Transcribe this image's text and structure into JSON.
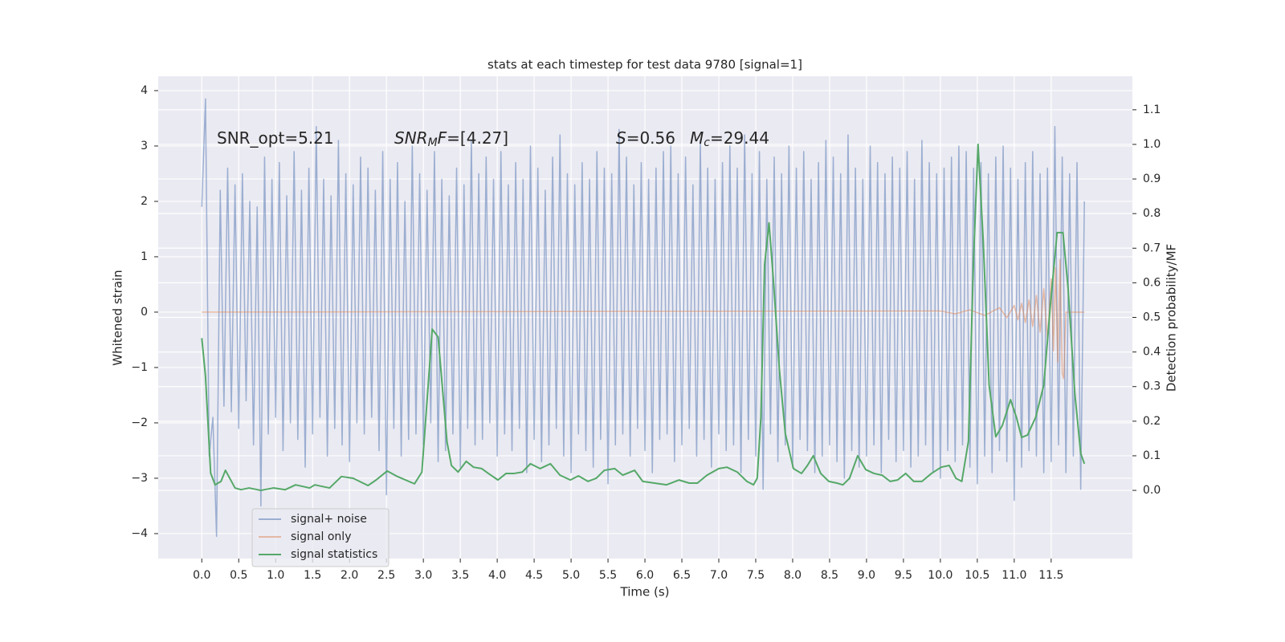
{
  "chart_data": {
    "type": "line",
    "title": "stats at each timestep for test data 9780 [signal=1]",
    "xlabel": "Time (s)",
    "ylabel": "Whitened strain",
    "y2label": "Detection probability/MF",
    "background": "#eaeaf2",
    "grid": true,
    "legend": "lower left",
    "xlim": [
      -0.59,
      12.6
    ],
    "ylim": [
      -4.45,
      4.26
    ],
    "y2lim": [
      -0.197,
      1.197
    ],
    "xticks": [
      {
        "value": 0,
        "label": "0.0"
      },
      0.5,
      {
        "value": 1,
        "label": "1.0"
      },
      1.5,
      {
        "value": 2,
        "label": "2.0"
      },
      2.5,
      {
        "value": 3,
        "label": "3.0"
      },
      3.5,
      {
        "value": 4,
        "label": "4.0"
      },
      4.5,
      {
        "value": 5,
        "label": "5.0"
      },
      5.5,
      {
        "value": 6,
        "label": "6.0"
      },
      6.5,
      {
        "value": 7,
        "label": "7.0"
      },
      7.5,
      {
        "value": 8,
        "label": "8.0"
      },
      8.5,
      {
        "value": 9,
        "label": "9.0"
      },
      9.5,
      {
        "value": 10,
        "label": "10.0"
      },
      10.5,
      {
        "value": 11,
        "label": "11.0"
      },
      11.5
    ],
    "yticks": [
      {
        "value": -4,
        "label": "−4"
      },
      {
        "value": -3,
        "label": "−3"
      },
      {
        "value": -2,
        "label": "−2"
      },
      {
        "value": -1,
        "label": "−1"
      },
      0,
      1,
      2,
      3,
      4
    ],
    "y2ticks": [
      {
        "value": 0,
        "label": "0.0"
      },
      0.1,
      0.2,
      0.3,
      0.4,
      0.5,
      0.6,
      0.7,
      0.8,
      0.9,
      {
        "value": 1,
        "label": "1.0"
      },
      1.1
    ],
    "annotations": [
      [
        {
          "text": "SNR_opt=5.21"
        }
      ],
      [
        {
          "text": "SNR",
          "italic": true
        },
        {
          "text": "M",
          "italic": true,
          "sub": true
        },
        {
          "text": "F",
          "italic": true
        },
        {
          "text": "=[4.27]"
        }
      ],
      [
        {
          "text": "S",
          "italic": true
        },
        {
          "text": "=0.56"
        }
      ],
      [
        {
          "text": "M",
          "italic": true
        },
        {
          "text": "c",
          "italic": true,
          "sub": true
        },
        {
          "text": "=29.44"
        }
      ]
    ],
    "series": [
      {
        "name": "signal+ noise",
        "color": "#4c72b0",
        "opacity": 0.5,
        "x": [
          0,
          0.05,
          0.1,
          0.15,
          0.2,
          0.25,
          0.3,
          0.35,
          0.4,
          0.45,
          0.5,
          0.55,
          0.6,
          0.65,
          0.7,
          0.75,
          0.8,
          0.85,
          0.9,
          0.95,
          1,
          1.05,
          1.1,
          1.15,
          1.2,
          1.25,
          1.3,
          1.35,
          1.4,
          1.45,
          1.5,
          1.55,
          1.6,
          1.65,
          1.7,
          1.75,
          1.8,
          1.85,
          1.9,
          1.95,
          2,
          2.05,
          2.1,
          2.15,
          2.2,
          2.25,
          2.3,
          2.35,
          2.4,
          2.45,
          2.5,
          2.55,
          2.6,
          2.65,
          2.7,
          2.75,
          2.8,
          2.85,
          2.9,
          2.95,
          3,
          3.05,
          3.1,
          3.15,
          3.2,
          3.25,
          3.3,
          3.35,
          3.4,
          3.45,
          3.5,
          3.55,
          3.6,
          3.65,
          3.7,
          3.75,
          3.8,
          3.85,
          3.9,
          3.95,
          4,
          4.05,
          4.1,
          4.15,
          4.2,
          4.25,
          4.3,
          4.35,
          4.4,
          4.45,
          4.5,
          4.55,
          4.6,
          4.65,
          4.7,
          4.75,
          4.8,
          4.85,
          4.9,
          4.95,
          5,
          5.05,
          5.1,
          5.15,
          5.2,
          5.25,
          5.3,
          5.35,
          5.4,
          5.45,
          5.5,
          5.55,
          5.6,
          5.65,
          5.7,
          5.75,
          5.8,
          5.85,
          5.9,
          5.95,
          6,
          6.05,
          6.1,
          6.15,
          6.2,
          6.25,
          6.3,
          6.35,
          6.4,
          6.45,
          6.5,
          6.55,
          6.6,
          6.65,
          6.7,
          6.75,
          6.8,
          6.85,
          6.9,
          6.95,
          7,
          7.05,
          7.1,
          7.15,
          7.2,
          7.25,
          7.3,
          7.35,
          7.4,
          7.45,
          7.5,
          7.55,
          7.6,
          7.65,
          7.7,
          7.75,
          7.8,
          7.85,
          7.9,
          7.95,
          8,
          8.05,
          8.1,
          8.15,
          8.2,
          8.25,
          8.3,
          8.35,
          8.4,
          8.45,
          8.5,
          8.55,
          8.6,
          8.65,
          8.7,
          8.75,
          8.8,
          8.85,
          8.9,
          8.95,
          9,
          9.05,
          9.1,
          9.15,
          9.2,
          9.25,
          9.3,
          9.35,
          9.4,
          9.45,
          9.5,
          9.55,
          9.6,
          9.65,
          9.7,
          9.75,
          9.8,
          9.85,
          9.9,
          9.95,
          10,
          10.05,
          10.1,
          10.15,
          10.2,
          10.25,
          10.3,
          10.35,
          10.4,
          10.45,
          10.5,
          10.55,
          10.6,
          10.65,
          10.7,
          10.75,
          10.8,
          10.85,
          10.9,
          10.95,
          11,
          11.05,
          11.1,
          11.15,
          11.2,
          11.25,
          11.3,
          11.35,
          11.4,
          11.45,
          11.5,
          11.55,
          11.6,
          11.65,
          11.7,
          11.75,
          11.8,
          11.85,
          11.9,
          11.95
        ],
        "values": [
          1.9,
          3.85,
          -2.6,
          -1.9,
          -4.05,
          2.2,
          -1.7,
          2.6,
          -1.8,
          2.3,
          -2.1,
          2.5,
          -1.6,
          2.0,
          -2.4,
          1.9,
          -3.5,
          2.8,
          -2.2,
          2.4,
          -1.9,
          2.7,
          -2.5,
          2.1,
          -2.0,
          2.9,
          -2.3,
          2.2,
          -2.8,
          2.6,
          -2.2,
          3.35,
          -1.9,
          2.4,
          -2.6,
          2.1,
          -2.1,
          3.1,
          -2.4,
          2.5,
          -2.7,
          2.3,
          -2.0,
          2.8,
          -2.2,
          2.6,
          -1.9,
          2.2,
          -2.5,
          2.9,
          -3.3,
          2.4,
          -2.1,
          2.7,
          -2.6,
          2.0,
          -2.3,
          3.0,
          -2.2,
          2.5,
          -2.4,
          2.2,
          -2.0,
          2.9,
          -2.7,
          2.4,
          -2.5,
          2.1,
          -2.2,
          2.6,
          -2.8,
          2.3,
          -2.1,
          3.1,
          -2.4,
          2.5,
          -2.3,
          2.8,
          -2.0,
          2.4,
          -2.6,
          2.9,
          -2.2,
          2.3,
          -2.5,
          2.7,
          -2.1,
          2.4,
          -2.9,
          3.0,
          -2.3,
          2.6,
          -2.7,
          2.2,
          -2.4,
          2.8,
          -2.1,
          3.2,
          -2.6,
          2.5,
          -2.9,
          2.3,
          -2.2,
          2.7,
          -2.5,
          2.4,
          -2.8,
          2.9,
          -2.3,
          2.6,
          -3.1,
          2.5,
          -2.4,
          3.3,
          -2.2,
          2.8,
          -2.6,
          2.3,
          -2.1,
          2.7,
          -2.5,
          2.4,
          -2.9,
          2.6,
          -2.3,
          2.9,
          -2.2,
          3.0,
          -2.7,
          2.5,
          -2.4,
          2.8,
          -2.1,
          2.3,
          -2.6,
          3.1,
          -2.3,
          2.6,
          -2.8,
          2.4,
          -2.2,
          2.7,
          -2.5,
          3.0,
          -2.4,
          2.6,
          -2.9,
          3.2,
          -2.3,
          2.5,
          -2.6,
          2.9,
          -3.2,
          2.4,
          -2.2,
          2.8,
          -2.7,
          2.5,
          -2.4,
          3.0,
          -2.8,
          2.6,
          -2.3,
          2.9,
          -2.5,
          2.4,
          -2.9,
          2.7,
          -2.6,
          3.1,
          -2.4,
          2.8,
          -2.7,
          2.5,
          -3.0,
          3.2,
          -2.5,
          2.6,
          -2.8,
          2.4,
          -2.6,
          3.0,
          -2.4,
          2.7,
          -2.9,
          2.5,
          -2.3,
          2.8,
          -2.7,
          2.6,
          -2.5,
          2.9,
          -2.8,
          2.4,
          -2.6,
          3.1,
          -2.4,
          2.7,
          -2.9,
          2.5,
          -3.0,
          2.6,
          -2.5,
          2.8,
          -2.7,
          3.0,
          -2.4,
          2.9,
          -2.8,
          2.6,
          -3.1,
          2.7,
          -2.6,
          2.5,
          -2.9,
          2.8,
          -2.5,
          3.0,
          -2.7,
          2.6,
          -3.4,
          2.4,
          -2.8,
          2.7,
          -2.5,
          2.9,
          -2.6,
          2.5,
          -2.9,
          2.6,
          -2.7,
          3.35,
          -2.4,
          2.8,
          -2.9,
          2.5,
          -2.6,
          2.7,
          -3.2,
          2.0
        ]
      },
      {
        "name": "signal only",
        "color": "#dd8452",
        "opacity": 0.5,
        "x": [
          0,
          10.0,
          10.2,
          10.4,
          10.6,
          10.8,
          10.9,
          11.0,
          11.05,
          11.1,
          11.15,
          11.2,
          11.25,
          11.3,
          11.35,
          11.4,
          11.45,
          11.5,
          11.53,
          11.56,
          11.59,
          11.62,
          11.65,
          11.67,
          11.7,
          11.95
        ],
        "values": [
          0,
          0.02,
          -0.03,
          0.04,
          -0.06,
          0.08,
          -0.1,
          0.12,
          -0.14,
          0.16,
          -0.19,
          0.22,
          -0.26,
          0.3,
          -0.36,
          0.42,
          -0.5,
          0.6,
          -0.7,
          0.8,
          -0.9,
          0.95,
          -1.1,
          -1.2,
          0,
          0
        ]
      },
      {
        "name": "signal statistics",
        "color": "#55a868",
        "opacity": 1,
        "axis": "y2",
        "x": [
          0.0,
          0.05,
          0.12,
          0.18,
          0.26,
          0.32,
          0.45,
          0.53,
          0.64,
          0.8,
          0.97,
          1.13,
          1.27,
          1.46,
          1.53,
          1.73,
          1.89,
          2.05,
          2.25,
          2.36,
          2.51,
          2.65,
          2.88,
          2.98,
          3.12,
          3.2,
          3.32,
          3.38,
          3.47,
          3.58,
          3.68,
          3.79,
          3.88,
          4.01,
          4.12,
          4.23,
          4.34,
          4.45,
          4.58,
          4.72,
          4.85,
          4.99,
          5.1,
          5.23,
          5.34,
          5.45,
          5.59,
          5.7,
          5.86,
          5.97,
          6.13,
          6.29,
          6.46,
          6.6,
          6.71,
          6.84,
          7.0,
          7.11,
          7.25,
          7.38,
          7.47,
          7.52,
          7.57,
          7.62,
          7.68,
          7.74,
          7.82,
          7.9,
          8.01,
          8.12,
          8.2,
          8.28,
          8.38,
          8.49,
          8.6,
          8.68,
          8.77,
          8.88,
          8.99,
          9.1,
          9.21,
          9.32,
          9.42,
          9.53,
          9.64,
          9.75,
          9.88,
          10.01,
          10.12,
          10.21,
          10.29,
          10.38,
          10.45,
          10.51,
          10.58,
          10.66,
          10.75,
          10.84,
          10.95,
          11.03,
          11.1,
          11.18,
          11.29,
          11.4,
          11.49,
          11.58,
          11.66,
          11.73,
          11.82,
          11.9,
          11.95
        ],
        "values": [
          0.44,
          0.33,
          0.05,
          0.016,
          0.026,
          0.058,
          0.007,
          0.002,
          0.007,
          0,
          0.007,
          0.002,
          0.016,
          0.007,
          0.016,
          0.007,
          0.04,
          0.035,
          0.014,
          0.03,
          0.056,
          0.04,
          0.019,
          0.053,
          0.466,
          0.443,
          0.14,
          0.072,
          0.053,
          0.084,
          0.067,
          0.063,
          0.049,
          0.03,
          0.049,
          0.049,
          0.053,
          0.077,
          0.063,
          0.077,
          0.044,
          0.03,
          0.042,
          0.026,
          0.035,
          0.058,
          0.063,
          0.044,
          0.058,
          0.026,
          0.021,
          0.016,
          0.03,
          0.021,
          0.021,
          0.044,
          0.063,
          0.067,
          0.053,
          0.026,
          0.016,
          0.035,
          0.211,
          0.652,
          0.773,
          0.606,
          0.35,
          0.165,
          0.063,
          0.049,
          0.072,
          0.1,
          0.049,
          0.026,
          0.021,
          0.016,
          0.035,
          0.1,
          0.06,
          0.049,
          0.044,
          0.026,
          0.03,
          0.049,
          0.026,
          0.026,
          0.049,
          0.067,
          0.072,
          0.035,
          0.026,
          0.142,
          0.675,
          1.0,
          0.722,
          0.304,
          0.155,
          0.188,
          0.262,
          0.211,
          0.153,
          0.16,
          0.211,
          0.304,
          0.536,
          0.745,
          0.745,
          0.582,
          0.281,
          0.107,
          0.077
        ]
      }
    ]
  }
}
